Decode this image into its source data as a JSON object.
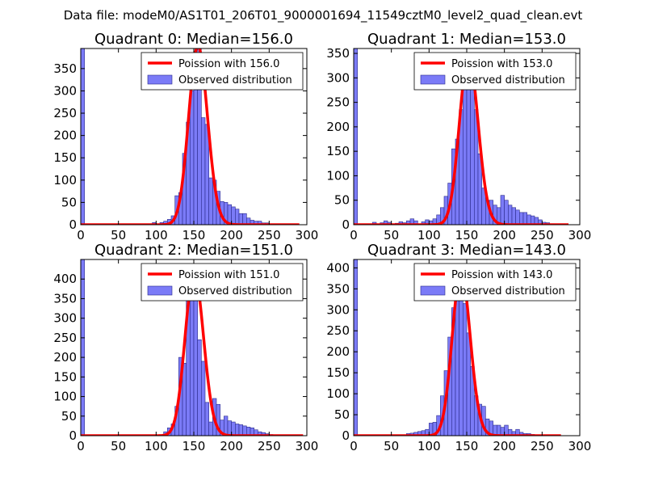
{
  "figure": {
    "suptitle": "Data file: modeM0/AS1T01_206T01_9000001694_11549cztM0_level2_quad_clean.evt"
  },
  "colors": {
    "bar_fill": "#7b7bf7",
    "bar_stroke": "#2a2a8a",
    "curve": "#ff0000",
    "axes": "#000000",
    "background": "#ffffff"
  },
  "chart_data": [
    {
      "type": "bar",
      "title": "Quadrant 0: Median=156.0",
      "median": 156.0,
      "legend": {
        "curve_label": "Poission with 156.0",
        "bar_label": "Observed distribution",
        "position": "top-right"
      },
      "xlim": [
        0,
        300
      ],
      "ylim": [
        0,
        395
      ],
      "xticks": [
        0,
        50,
        100,
        150,
        200,
        250,
        300
      ],
      "yticks": [
        0,
        50,
        100,
        150,
        200,
        250,
        300,
        350
      ],
      "bin_width": 5,
      "bins": [
        {
          "x": 0,
          "y": 395
        },
        {
          "x": 95,
          "y": 5
        },
        {
          "x": 105,
          "y": 5
        },
        {
          "x": 110,
          "y": 8
        },
        {
          "x": 115,
          "y": 12
        },
        {
          "x": 120,
          "y": 20
        },
        {
          "x": 125,
          "y": 65
        },
        {
          "x": 130,
          "y": 72
        },
        {
          "x": 135,
          "y": 160
        },
        {
          "x": 140,
          "y": 230
        },
        {
          "x": 145,
          "y": 300
        },
        {
          "x": 150,
          "y": 340
        },
        {
          "x": 155,
          "y": 400
        },
        {
          "x": 160,
          "y": 240
        },
        {
          "x": 165,
          "y": 225
        },
        {
          "x": 170,
          "y": 105
        },
        {
          "x": 175,
          "y": 100
        },
        {
          "x": 180,
          "y": 75
        },
        {
          "x": 185,
          "y": 52
        },
        {
          "x": 190,
          "y": 50
        },
        {
          "x": 195,
          "y": 45
        },
        {
          "x": 200,
          "y": 40
        },
        {
          "x": 205,
          "y": 35
        },
        {
          "x": 210,
          "y": 25
        },
        {
          "x": 215,
          "y": 25
        },
        {
          "x": 220,
          "y": 15
        },
        {
          "x": 225,
          "y": 10
        },
        {
          "x": 230,
          "y": 8
        },
        {
          "x": 235,
          "y": 8
        },
        {
          "x": 240,
          "y": 4
        },
        {
          "x": 245,
          "y": 4
        },
        {
          "x": 250,
          "y": 2
        },
        {
          "x": 255,
          "y": 2
        },
        {
          "x": 260,
          "y": 2
        },
        {
          "x": 265,
          "y": 1
        },
        {
          "x": 270,
          "y": 1
        }
      ],
      "curve_xrange": [
        0,
        290
      ]
    },
    {
      "type": "bar",
      "title": "Quadrant 1: Median=153.0",
      "median": 153.0,
      "legend": {
        "curve_label": "Poission with 153.0",
        "bar_label": "Observed distribution",
        "position": "top-right"
      },
      "xlim": [
        0,
        300
      ],
      "ylim": [
        0,
        360
      ],
      "xticks": [
        0,
        50,
        100,
        150,
        200,
        250,
        300
      ],
      "yticks": [
        0,
        50,
        100,
        150,
        200,
        250,
        300,
        350
      ],
      "bin_width": 5,
      "bins": [
        {
          "x": 0,
          "y": 360
        },
        {
          "x": 25,
          "y": 5
        },
        {
          "x": 35,
          "y": 4
        },
        {
          "x": 40,
          "y": 8
        },
        {
          "x": 45,
          "y": 5
        },
        {
          "x": 55,
          "y": 3
        },
        {
          "x": 60,
          "y": 6
        },
        {
          "x": 65,
          "y": 4
        },
        {
          "x": 70,
          "y": 8
        },
        {
          "x": 75,
          "y": 12
        },
        {
          "x": 80,
          "y": 8
        },
        {
          "x": 90,
          "y": 6
        },
        {
          "x": 95,
          "y": 10
        },
        {
          "x": 100,
          "y": 8
        },
        {
          "x": 105,
          "y": 12
        },
        {
          "x": 110,
          "y": 20
        },
        {
          "x": 115,
          "y": 35
        },
        {
          "x": 120,
          "y": 58
        },
        {
          "x": 125,
          "y": 85
        },
        {
          "x": 130,
          "y": 155
        },
        {
          "x": 135,
          "y": 175
        },
        {
          "x": 140,
          "y": 235
        },
        {
          "x": 145,
          "y": 300
        },
        {
          "x": 150,
          "y": 345
        },
        {
          "x": 155,
          "y": 300
        },
        {
          "x": 160,
          "y": 235
        },
        {
          "x": 165,
          "y": 145
        },
        {
          "x": 170,
          "y": 75
        },
        {
          "x": 175,
          "y": 50
        },
        {
          "x": 180,
          "y": 50
        },
        {
          "x": 185,
          "y": 40
        },
        {
          "x": 190,
          "y": 35
        },
        {
          "x": 195,
          "y": 60
        },
        {
          "x": 200,
          "y": 50
        },
        {
          "x": 205,
          "y": 40
        },
        {
          "x": 210,
          "y": 35
        },
        {
          "x": 215,
          "y": 30
        },
        {
          "x": 220,
          "y": 25
        },
        {
          "x": 225,
          "y": 25
        },
        {
          "x": 230,
          "y": 20
        },
        {
          "x": 235,
          "y": 18
        },
        {
          "x": 240,
          "y": 15
        },
        {
          "x": 245,
          "y": 10
        },
        {
          "x": 250,
          "y": 5
        },
        {
          "x": 255,
          "y": 4
        },
        {
          "x": 260,
          "y": 2
        }
      ],
      "curve_xrange": [
        0,
        285
      ]
    },
    {
      "type": "bar",
      "title": "Quadrant 2: Median=151.0",
      "median": 151.0,
      "legend": {
        "curve_label": "Poission with 151.0",
        "bar_label": "Observed distribution",
        "position": "top-right"
      },
      "xlim": [
        0,
        300
      ],
      "ylim": [
        0,
        450
      ],
      "xticks": [
        0,
        50,
        100,
        150,
        200,
        250,
        300
      ],
      "yticks": [
        0,
        50,
        100,
        150,
        200,
        250,
        300,
        350,
        400
      ],
      "bin_width": 5,
      "bins": [
        {
          "x": 0,
          "y": 450
        },
        {
          "x": 110,
          "y": 10
        },
        {
          "x": 115,
          "y": 20
        },
        {
          "x": 120,
          "y": 30
        },
        {
          "x": 125,
          "y": 75
        },
        {
          "x": 130,
          "y": 200
        },
        {
          "x": 135,
          "y": 185
        },
        {
          "x": 140,
          "y": 350
        },
        {
          "x": 145,
          "y": 415
        },
        {
          "x": 150,
          "y": 370
        },
        {
          "x": 155,
          "y": 245
        },
        {
          "x": 160,
          "y": 190
        },
        {
          "x": 165,
          "y": 85
        },
        {
          "x": 170,
          "y": 35
        },
        {
          "x": 175,
          "y": 95
        },
        {
          "x": 180,
          "y": 80
        },
        {
          "x": 185,
          "y": 40
        },
        {
          "x": 190,
          "y": 50
        },
        {
          "x": 195,
          "y": 38
        },
        {
          "x": 200,
          "y": 35
        },
        {
          "x": 205,
          "y": 30
        },
        {
          "x": 210,
          "y": 28
        },
        {
          "x": 215,
          "y": 25
        },
        {
          "x": 220,
          "y": 22
        },
        {
          "x": 225,
          "y": 20
        },
        {
          "x": 230,
          "y": 15
        },
        {
          "x": 235,
          "y": 10
        },
        {
          "x": 240,
          "y": 8
        },
        {
          "x": 245,
          "y": 5
        },
        {
          "x": 250,
          "y": 3
        }
      ],
      "curve_xrange": [
        0,
        295
      ]
    },
    {
      "type": "bar",
      "title": "Quadrant 3: Median=143.0",
      "median": 143.0,
      "legend": {
        "curve_label": "Poission with 143.0",
        "bar_label": "Observed distribution",
        "position": "top-right"
      },
      "xlim": [
        0,
        300
      ],
      "ylim": [
        0,
        420
      ],
      "xticks": [
        0,
        50,
        100,
        150,
        200,
        250,
        300
      ],
      "yticks": [
        0,
        50,
        100,
        150,
        200,
        250,
        300,
        350,
        400
      ],
      "bin_width": 5,
      "bins": [
        {
          "x": 0,
          "y": 420
        },
        {
          "x": 65,
          "y": 2
        },
        {
          "x": 70,
          "y": 5
        },
        {
          "x": 75,
          "y": 6
        },
        {
          "x": 80,
          "y": 8
        },
        {
          "x": 85,
          "y": 10
        },
        {
          "x": 90,
          "y": 12
        },
        {
          "x": 95,
          "y": 15
        },
        {
          "x": 100,
          "y": 30
        },
        {
          "x": 105,
          "y": 32
        },
        {
          "x": 110,
          "y": 48
        },
        {
          "x": 115,
          "y": 95
        },
        {
          "x": 120,
          "y": 155
        },
        {
          "x": 125,
          "y": 235
        },
        {
          "x": 130,
          "y": 305
        },
        {
          "x": 135,
          "y": 375
        },
        {
          "x": 140,
          "y": 390
        },
        {
          "x": 145,
          "y": 315
        },
        {
          "x": 150,
          "y": 245
        },
        {
          "x": 155,
          "y": 165
        },
        {
          "x": 160,
          "y": 95
        },
        {
          "x": 165,
          "y": 75
        },
        {
          "x": 170,
          "y": 70
        },
        {
          "x": 175,
          "y": 40
        },
        {
          "x": 180,
          "y": 35
        },
        {
          "x": 185,
          "y": 25
        },
        {
          "x": 190,
          "y": 25
        },
        {
          "x": 195,
          "y": 20
        },
        {
          "x": 200,
          "y": 25
        },
        {
          "x": 205,
          "y": 15
        },
        {
          "x": 210,
          "y": 10
        },
        {
          "x": 215,
          "y": 15
        },
        {
          "x": 220,
          "y": 8
        },
        {
          "x": 225,
          "y": 5
        },
        {
          "x": 230,
          "y": 5
        },
        {
          "x": 235,
          "y": 3
        }
      ],
      "curve_xrange": [
        0,
        275
      ]
    }
  ]
}
